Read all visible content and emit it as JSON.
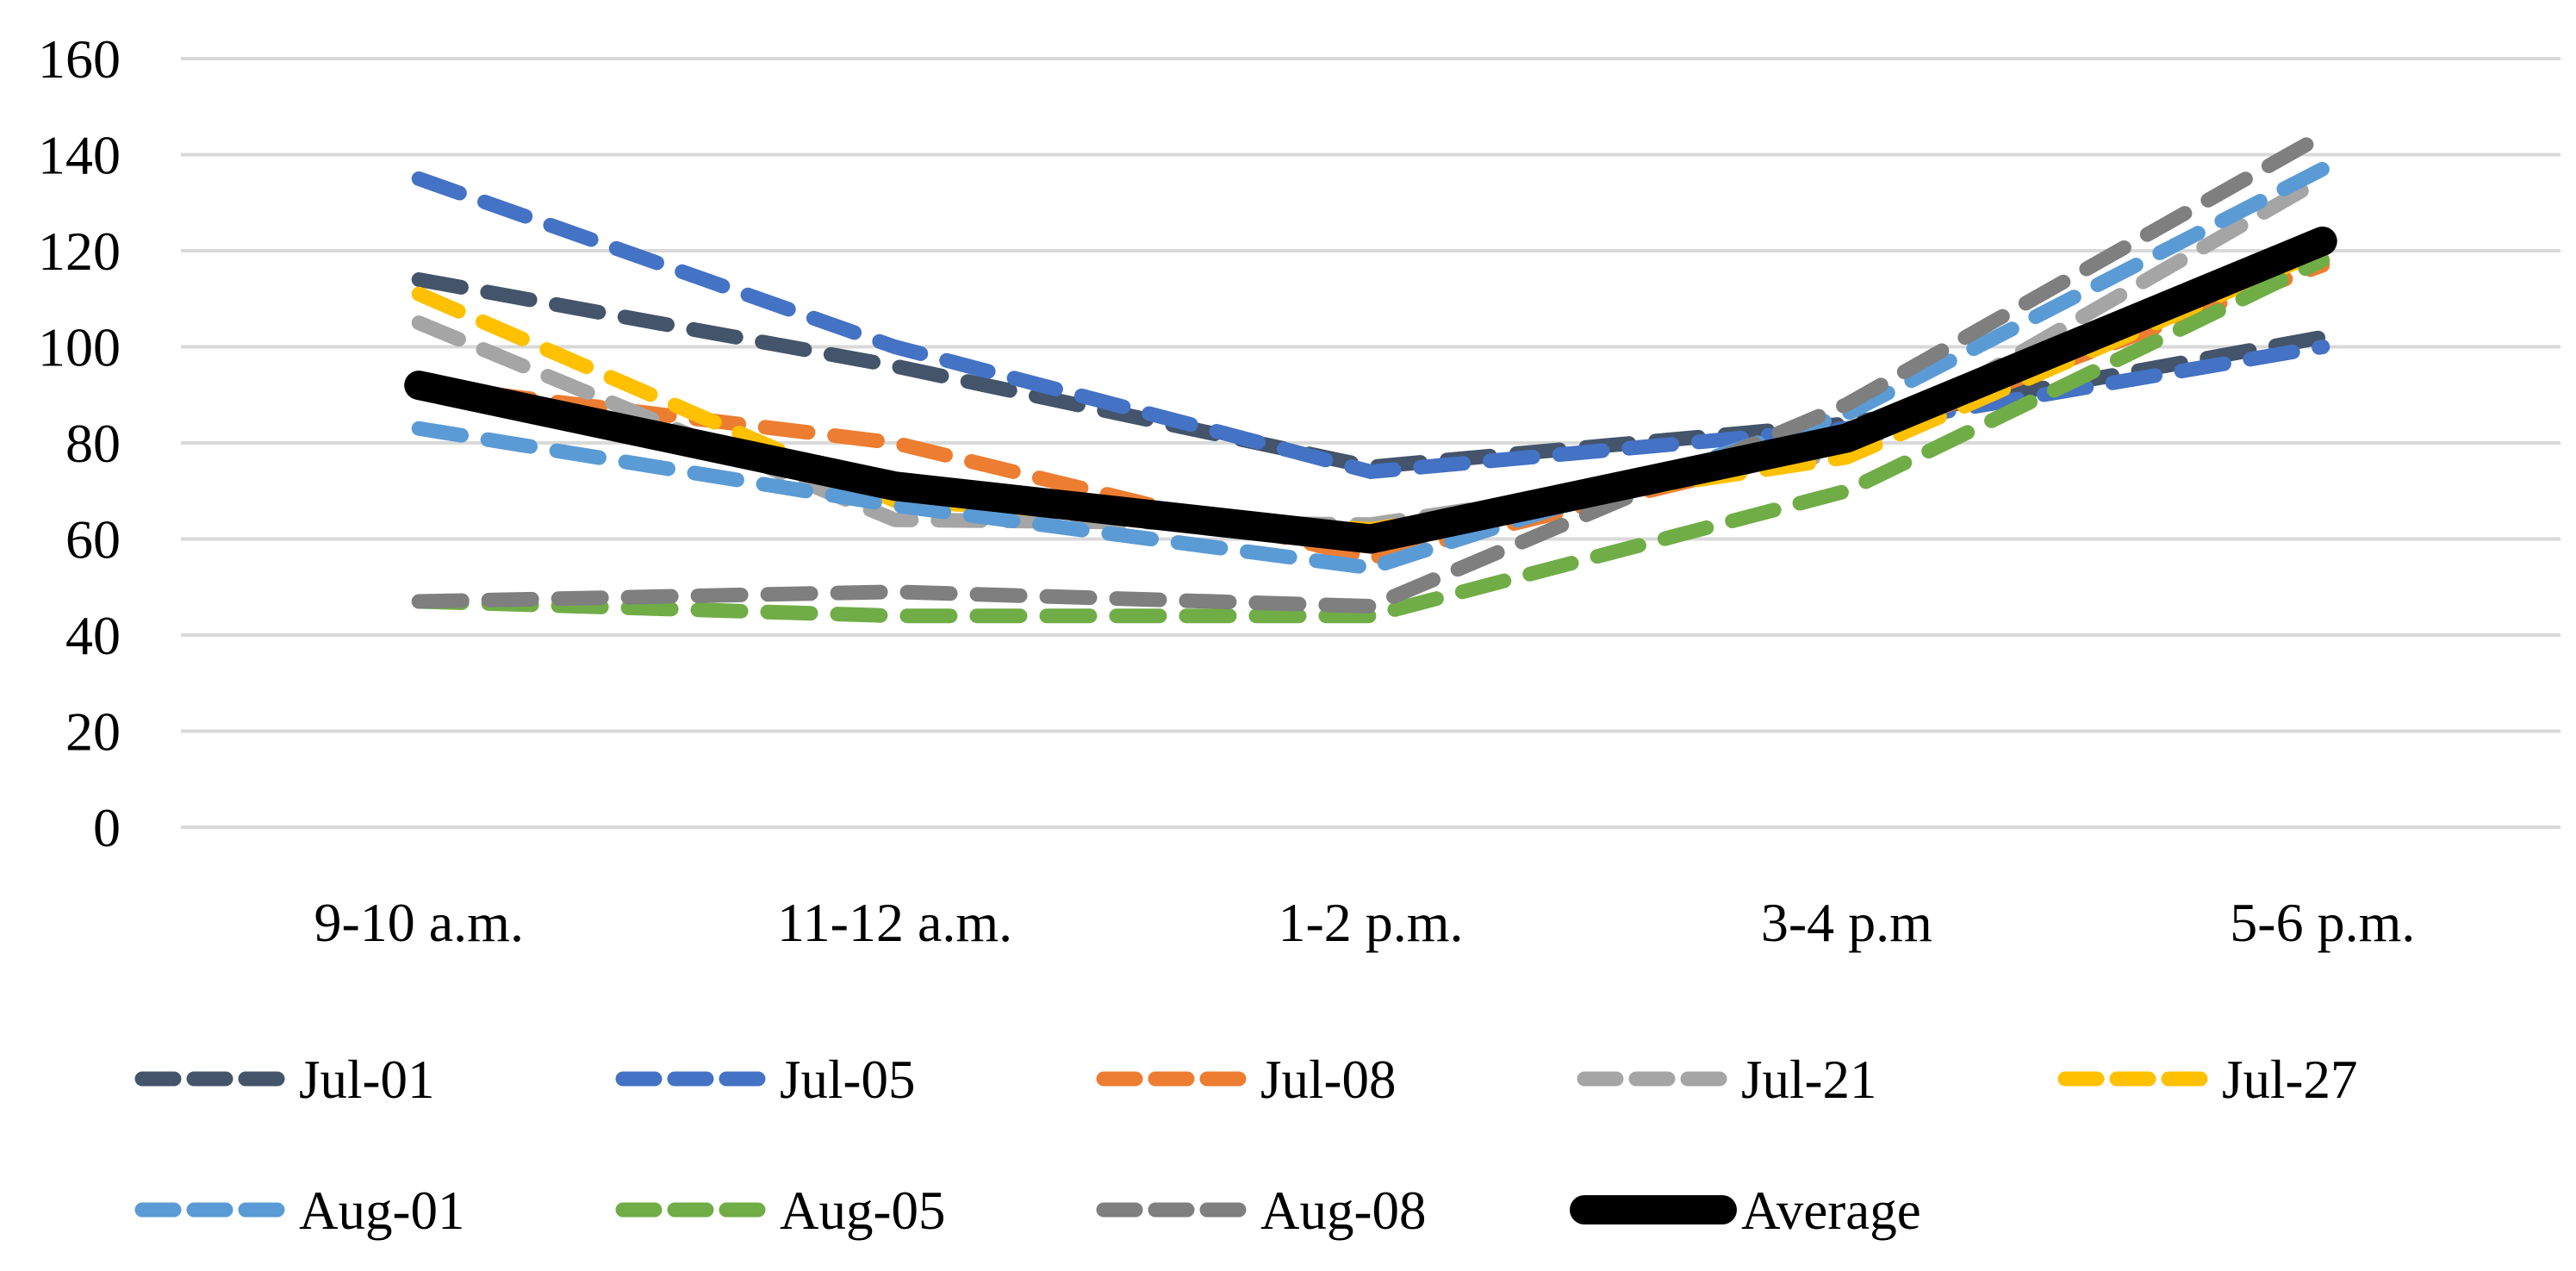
{
  "chart_data": {
    "type": "line",
    "title": "",
    "categories": [
      "9-10 a.m.",
      "11-12 a.m.",
      "1-2 p.m.",
      "3-4 p.m",
      "5-6 p.m."
    ],
    "y_axis": {
      "min": 0,
      "max": 160,
      "tick_interval": 20,
      "tick_labels": [
        "160",
        "140",
        "120",
        "100",
        "80",
        "60",
        "40",
        "20",
        "0"
      ]
    },
    "grid": true,
    "legend_position": "bottom",
    "series": [
      {
        "name": "Jul-01",
        "color": "#44546A",
        "style": "dashed",
        "values": [
          114,
          96,
          75,
          84,
          102
        ]
      },
      {
        "name": "Jul-05",
        "color": "#4472C4",
        "style": "dashed",
        "values": [
          135,
          100,
          74,
          83,
          100
        ]
      },
      {
        "name": "Jul-08",
        "color": "#ED7D31",
        "style": "dashed",
        "values": [
          92,
          80,
          56,
          80,
          117
        ]
      },
      {
        "name": "Jul-21",
        "color": "#A5A5A5",
        "style": "dashed",
        "values": [
          105,
          64,
          63,
          78,
          135
        ]
      },
      {
        "name": "Jul-27",
        "color": "#FFC000",
        "style": "dashed",
        "values": [
          111,
          68,
          62,
          77,
          120
        ]
      },
      {
        "name": "Aug-01",
        "color": "#5B9BD5",
        "style": "dashed",
        "values": [
          83,
          67,
          54,
          86,
          137
        ]
      },
      {
        "name": "Aug-05",
        "color": "#70AD47",
        "style": "dashed",
        "values": [
          47,
          44,
          44,
          70,
          118
        ]
      },
      {
        "name": "Aug-08",
        "color": "#7F7F7F",
        "style": "dashed",
        "values": [
          47,
          49,
          46,
          88,
          144
        ]
      },
      {
        "name": "Average",
        "color": "#000000",
        "style": "solid",
        "values": [
          92,
          71,
          60,
          81,
          122
        ]
      }
    ],
    "legend_rows": [
      [
        "Jul-01",
        "Jul-05",
        "Jul-08",
        "Jul-21",
        "Jul-27"
      ],
      [
        "Aug-01",
        "Aug-05",
        "Aug-08",
        "Average"
      ]
    ]
  },
  "colors": {
    "gridline": "#D9D9D9",
    "text": "#000000",
    "background": "#FFFFFF"
  }
}
